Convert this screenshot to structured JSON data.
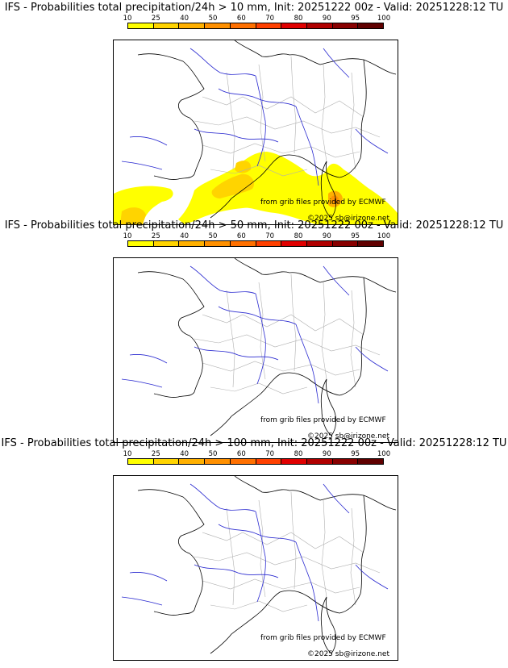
{
  "scale": {
    "labels": [
      "10",
      "25",
      "40",
      "50",
      "60",
      "70",
      "80",
      "90",
      "95",
      "100"
    ],
    "colors": [
      "#ffff00",
      "#ffd400",
      "#ffb000",
      "#ff9000",
      "#ff7000",
      "#ff4000",
      "#e00000",
      "#b00000",
      "#880000",
      "#600000"
    ]
  },
  "panels": [
    {
      "title": "IFS - Probabilities total precipitation/24h > 10 mm, Init: 20251222 00z - Valid: 20251228:12 TU",
      "precipitation_area_shown": true,
      "credit_source": "from grib files provided by ECMWF",
      "credit_copyright": "©2025 sb@irizone.net"
    },
    {
      "title": "IFS - Probabilities total precipitation/24h > 50 mm, Init: 20251222 00z - Valid: 20251228:12 TU",
      "precipitation_area_shown": false,
      "credit_source": "from grib files provided by ECMWF",
      "credit_copyright": "©2025 sb@irizone.net"
    },
    {
      "title": "IFS - Probabilities total precipitation/24h > 100 mm, Init: 20251222 00z - Valid: 20251228:12 TU",
      "precipitation_area_shown": false,
      "credit_source": "from grib files provided by ECMWF",
      "credit_copyright": "©2025 sb@irizone.net"
    }
  ],
  "map_colors": {
    "coastline": "#000000",
    "rivers": "#2a2ad0",
    "departments": "#b0b0b0",
    "frame": "#000000"
  }
}
